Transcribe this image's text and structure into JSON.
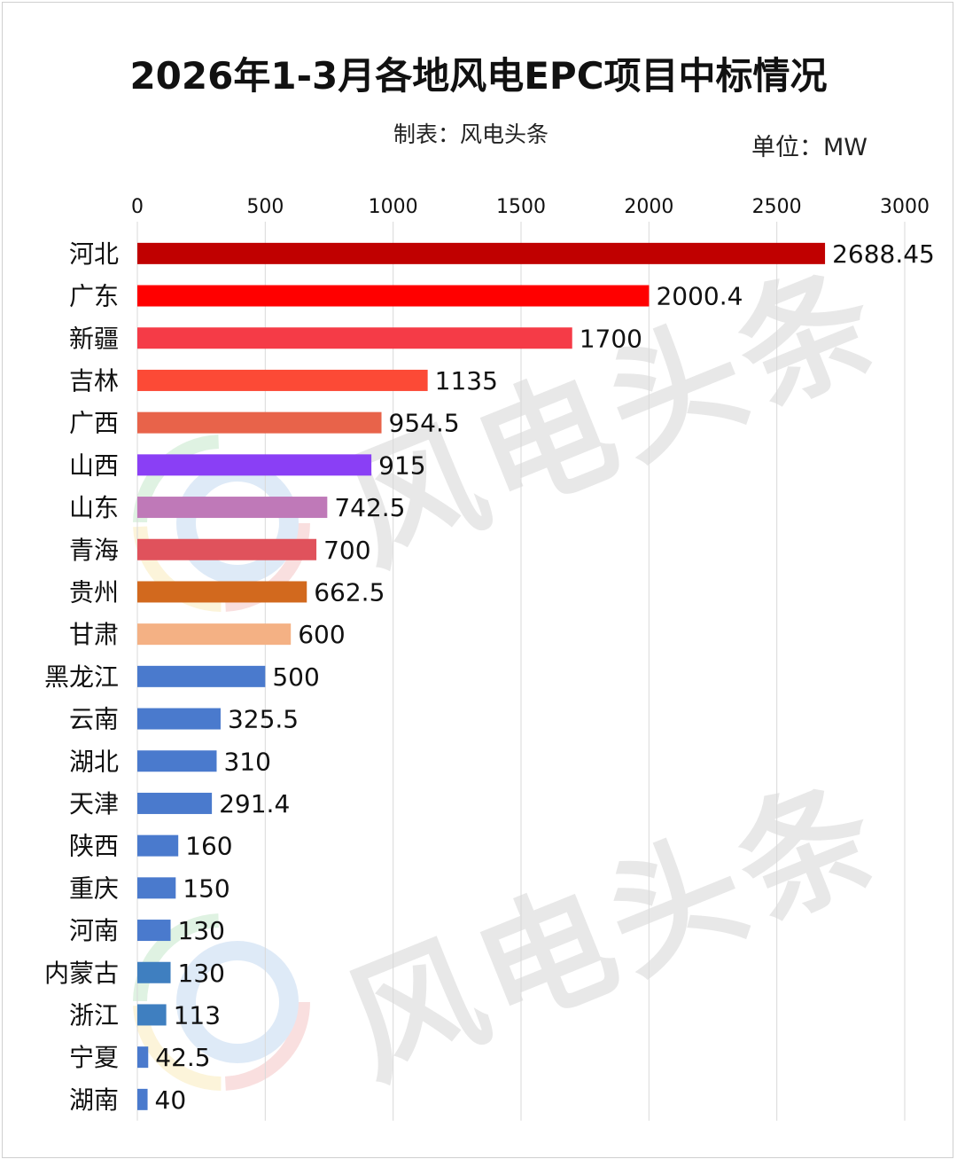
{
  "title": "2026年1-3月各地风电EPC项目中标情况",
  "maker": "制表：风电头条",
  "unit": "单位：MW",
  "watermark": "风电头条",
  "chart_data": {
    "type": "bar",
    "orientation": "horizontal",
    "title": "2026年1-3月各地风电EPC项目中标情况",
    "xlim": [
      0,
      3000
    ],
    "ticks": [
      0,
      500,
      1000,
      1500,
      2000,
      2500,
      3000
    ],
    "tick_position": "top",
    "grid": true,
    "categories": [
      "河北",
      "广东",
      "新疆",
      "吉林",
      "广西",
      "山西",
      "山东",
      "青海",
      "贵州",
      "甘肃",
      "黑龙江",
      "云南",
      "湖北",
      "天津",
      "陕西",
      "重庆",
      "河南",
      "内蒙古",
      "浙江",
      "宁夏",
      "湖南"
    ],
    "values": [
      2688.45,
      2000.4,
      1700,
      1135,
      954.5,
      915,
      742.5,
      700,
      662.5,
      600,
      500,
      325.5,
      310,
      291.4,
      160,
      150,
      130,
      130,
      113,
      42.5,
      40
    ],
    "value_labels": [
      "2688.45",
      "2000.4",
      "1700",
      "1135",
      "954.5",
      "915",
      "742.5",
      "700",
      "662.5",
      "600",
      "500",
      "325.5",
      "310",
      "291.4",
      "160",
      "150",
      "130",
      "130",
      "113",
      "42.5",
      "40"
    ],
    "colors": [
      "#c00000",
      "#ff0000",
      "#f53b47",
      "#fc4a36",
      "#e8634a",
      "#8a3ff5",
      "#bf79b8",
      "#e0525c",
      "#d2691e",
      "#f4b184",
      "#4a7acd",
      "#4a7acd",
      "#4a7acd",
      "#4a7acd",
      "#4a7acd",
      "#4a7acd",
      "#4a7acd",
      "#3f7fc0",
      "#3f7fc0",
      "#4a7acd",
      "#4a7acd"
    ]
  }
}
